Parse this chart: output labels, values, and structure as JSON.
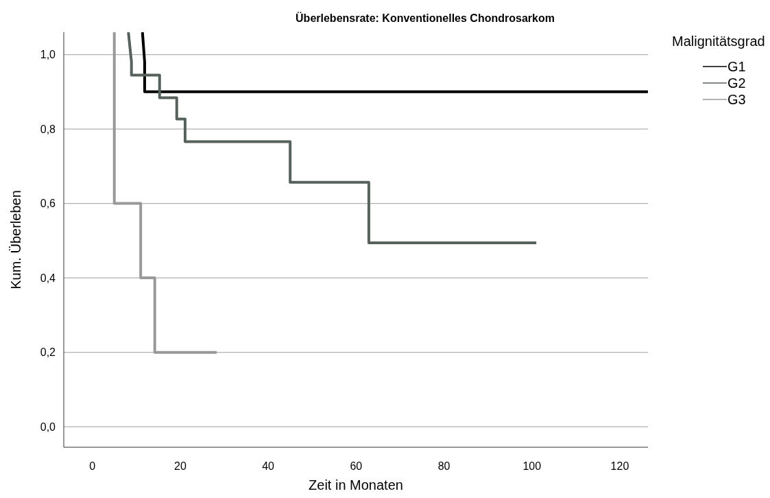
{
  "chart_data": {
    "type": "line",
    "title": "Überlebensrate: Konventionelles Chondrosarkom",
    "xlabel": "Zeit in Monaten",
    "ylabel": "Kum. Überleben",
    "legend_title": "Malignitätsgrad",
    "xlim": [
      -6.5,
      126.4
    ],
    "xticks": [
      0,
      20,
      40,
      60,
      80,
      100,
      120
    ],
    "ylim": [
      -0.055,
      1.06
    ],
    "yticks": [
      {
        "value": 0,
        "label": "0,0"
      },
      {
        "value": 0.2,
        "label": "0,2"
      },
      {
        "value": 0.4,
        "label": "0,4"
      },
      {
        "value": 0.6,
        "label": "0,6"
      },
      {
        "value": 0.8,
        "label": "0,8"
      },
      {
        "value": 1.0,
        "label": "1,0"
      }
    ],
    "grid": "y",
    "legend": "top right",
    "marker": "none",
    "line_style": "solid",
    "series": [
      {
        "name": "G1",
        "color": "#000000",
        "x": [
          11.4,
          11.9,
          11.9,
          126.4
        ],
        "values": [
          1.06,
          0.98,
          0.9,
          0.9
        ]
      },
      {
        "name": "G2",
        "color": "#58625c",
        "x": [
          8.2,
          8.9,
          8.9,
          15.3,
          15.3,
          19.2,
          19.2,
          21.1,
          21.1,
          45.0,
          45.0,
          62.9,
          62.9,
          101
        ],
        "values": [
          1.06,
          0.98,
          0.945,
          0.945,
          0.884,
          0.884,
          0.827,
          0.827,
          0.766,
          0.766,
          0.657,
          0.657,
          0.494,
          0.494
        ]
      },
      {
        "name": "G3",
        "color": "#999999",
        "x": [
          5.0,
          5.0,
          11.0,
          11.0,
          14.2,
          14.2,
          28.3
        ],
        "values": [
          1.06,
          0.6,
          0.6,
          0.4,
          0.4,
          0.2,
          0.2
        ]
      }
    ]
  }
}
